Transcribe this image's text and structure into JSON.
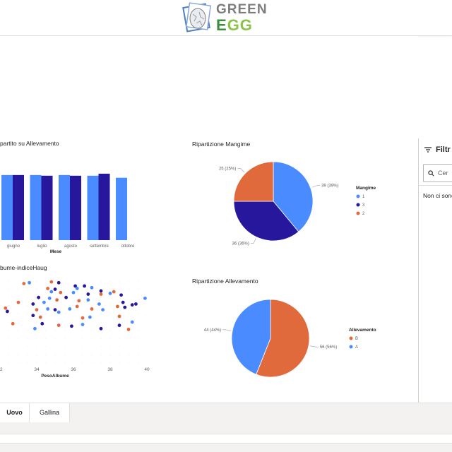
{
  "brand": {
    "logo_text_line1": "GREEN",
    "logo_text_line2_first": "E",
    "logo_text_line2_rest": "GG",
    "colors": {
      "green_dark": "#3a8f3a",
      "green_light": "#8ac24a",
      "grey": "#7d7d7d"
    }
  },
  "colors": {
    "light_blue": "#4a8cff",
    "dark_blue": "#26179c",
    "orange": "#e06a3b",
    "tab_accent": "#117865"
  },
  "bar_visual": {
    "title": "partito su Allevamento",
    "xlabel": "Mese"
  },
  "scatter_visual": {
    "title": "bume-indiceHaug",
    "xlabel": "PesoAlbume"
  },
  "pie_mangime": {
    "title": "Ripartizione Mangime",
    "legend_title": "Mangime",
    "slice_labels": [
      "39 (39%)",
      "36 (36%)",
      "25 (25%)"
    ]
  },
  "pie_allevamento": {
    "title": "Ripartizione Allevamento",
    "legend_title": "Allevamento",
    "slice_labels": [
      "56 (56%)",
      "44 (44%)"
    ]
  },
  "chart_data": [
    {
      "type": "bar",
      "title": "partito su Allevamento",
      "xlabel": "Mese",
      "categories": [
        "giugno",
        "luglio",
        "agosto",
        "settembre",
        "ottobre"
      ],
      "series": [
        {
          "values": [
            0.96,
            0.96,
            0.96,
            0.95,
            0.92
          ],
          "color": "#4a8cff"
        },
        {
          "values": [
            0.96,
            0.95,
            0.95,
            0.98,
            null
          ],
          "color": "#26179c"
        }
      ],
      "ylim": [
        0,
        1
      ]
    },
    {
      "type": "scatter",
      "title": "bume-indiceHaug",
      "xlabel": "PesoAlbume",
      "xticks": [
        "2",
        "34",
        "36",
        "38",
        "40"
      ],
      "xlim": [
        32,
        40
      ],
      "ylim": [
        0,
        1
      ],
      "points": [
        {
          "x": 33.3,
          "y": 0.97,
          "c": "o"
        },
        {
          "x": 33.6,
          "y": 0.98,
          "c": "b"
        },
        {
          "x": 34.8,
          "y": 0.99,
          "c": "o"
        },
        {
          "x": 35.2,
          "y": 0.98,
          "c": "d"
        },
        {
          "x": 34.6,
          "y": 0.91,
          "c": "o"
        },
        {
          "x": 35.0,
          "y": 0.9,
          "c": "d"
        },
        {
          "x": 36.1,
          "y": 0.94,
          "c": "d"
        },
        {
          "x": 36.6,
          "y": 0.94,
          "c": "d"
        },
        {
          "x": 36.2,
          "y": 0.91,
          "c": "b"
        },
        {
          "x": 37.0,
          "y": 0.92,
          "c": "b"
        },
        {
          "x": 37.5,
          "y": 0.88,
          "c": "d"
        },
        {
          "x": 38.2,
          "y": 0.87,
          "c": "o"
        },
        {
          "x": 34.8,
          "y": 0.87,
          "c": "b"
        },
        {
          "x": 35.3,
          "y": 0.86,
          "c": "o"
        },
        {
          "x": 36.0,
          "y": 0.86,
          "c": "b"
        },
        {
          "x": 36.8,
          "y": 0.84,
          "c": "d"
        },
        {
          "x": 37.5,
          "y": 0.84,
          "c": "o"
        },
        {
          "x": 38.0,
          "y": 0.85,
          "c": "b"
        },
        {
          "x": 38.6,
          "y": 0.83,
          "c": "d"
        },
        {
          "x": 39.9,
          "y": 0.79,
          "c": "b"
        },
        {
          "x": 34.1,
          "y": 0.8,
          "c": "d"
        },
        {
          "x": 34.7,
          "y": 0.79,
          "c": "b"
        },
        {
          "x": 33.0,
          "y": 0.74,
          "c": "o"
        },
        {
          "x": 33.8,
          "y": 0.72,
          "c": "d"
        },
        {
          "x": 34.4,
          "y": 0.74,
          "c": "b"
        },
        {
          "x": 35.1,
          "y": 0.77,
          "c": "o"
        },
        {
          "x": 35.6,
          "y": 0.8,
          "c": "d"
        },
        {
          "x": 36.3,
          "y": 0.76,
          "c": "o"
        },
        {
          "x": 36.8,
          "y": 0.77,
          "c": "b"
        },
        {
          "x": 37.4,
          "y": 0.72,
          "c": "b"
        },
        {
          "x": 38.7,
          "y": 0.74,
          "c": "d"
        },
        {
          "x": 39.2,
          "y": 0.71,
          "c": "d"
        },
        {
          "x": 32.3,
          "y": 0.67,
          "c": "o"
        },
        {
          "x": 34.0,
          "y": 0.65,
          "c": "o"
        },
        {
          "x": 34.6,
          "y": 0.66,
          "c": "b"
        },
        {
          "x": 35.0,
          "y": 0.65,
          "c": "d"
        },
        {
          "x": 35.8,
          "y": 0.66,
          "c": "b"
        },
        {
          "x": 36.2,
          "y": 0.69,
          "c": "o"
        },
        {
          "x": 37.0,
          "y": 0.66,
          "c": "o"
        },
        {
          "x": 37.6,
          "y": 0.65,
          "c": "b"
        },
        {
          "x": 38.4,
          "y": 0.69,
          "c": "o"
        },
        {
          "x": 38.8,
          "y": 0.68,
          "c": "d"
        },
        {
          "x": 39.4,
          "y": 0.72,
          "c": "d"
        },
        {
          "x": 32.4,
          "y": 0.63,
          "c": "d"
        },
        {
          "x": 33.8,
          "y": 0.58,
          "c": "d"
        },
        {
          "x": 34.2,
          "y": 0.56,
          "c": "o"
        },
        {
          "x": 35.2,
          "y": 0.62,
          "c": "b"
        },
        {
          "x": 36.5,
          "y": 0.55,
          "c": "o"
        },
        {
          "x": 36.9,
          "y": 0.56,
          "c": "b"
        },
        {
          "x": 38.5,
          "y": 0.57,
          "c": "o"
        },
        {
          "x": 39.2,
          "y": 0.5,
          "c": "b"
        },
        {
          "x": 32.7,
          "y": 0.48,
          "c": "o"
        },
        {
          "x": 34.3,
          "y": 0.48,
          "c": "d"
        },
        {
          "x": 35.2,
          "y": 0.46,
          "c": "o"
        },
        {
          "x": 35.9,
          "y": 0.45,
          "c": "d"
        },
        {
          "x": 36.5,
          "y": 0.47,
          "c": "b"
        },
        {
          "x": 38.5,
          "y": 0.46,
          "c": "d"
        },
        {
          "x": 33.9,
          "y": 0.42,
          "c": "b"
        },
        {
          "x": 37.5,
          "y": 0.42,
          "c": "d"
        },
        {
          "x": 39.0,
          "y": 0.41,
          "c": "o"
        }
      ]
    },
    {
      "type": "pie",
      "title": "Ripartizione Mangime",
      "legend_title": "Mangime",
      "labels": [
        "1",
        "3",
        "2"
      ],
      "values": [
        39,
        36,
        25
      ],
      "colors": [
        "#4a8cff",
        "#26179c",
        "#e06a3b"
      ],
      "legend_position": "right"
    },
    {
      "type": "pie",
      "title": "Ripartizione Allevamento",
      "legend_title": "Allevamento",
      "labels": [
        "B",
        "A"
      ],
      "values": [
        56,
        44
      ],
      "colors": [
        "#e06a3b",
        "#4a8cff"
      ],
      "legend_position": "right"
    }
  ],
  "filters": {
    "title": "Filtr",
    "search_placeholder": "Cer",
    "empty_text": "Non ci sono"
  },
  "tabs": [
    {
      "label": "Uovo",
      "active": true
    },
    {
      "label": "Gallina",
      "active": false
    }
  ]
}
